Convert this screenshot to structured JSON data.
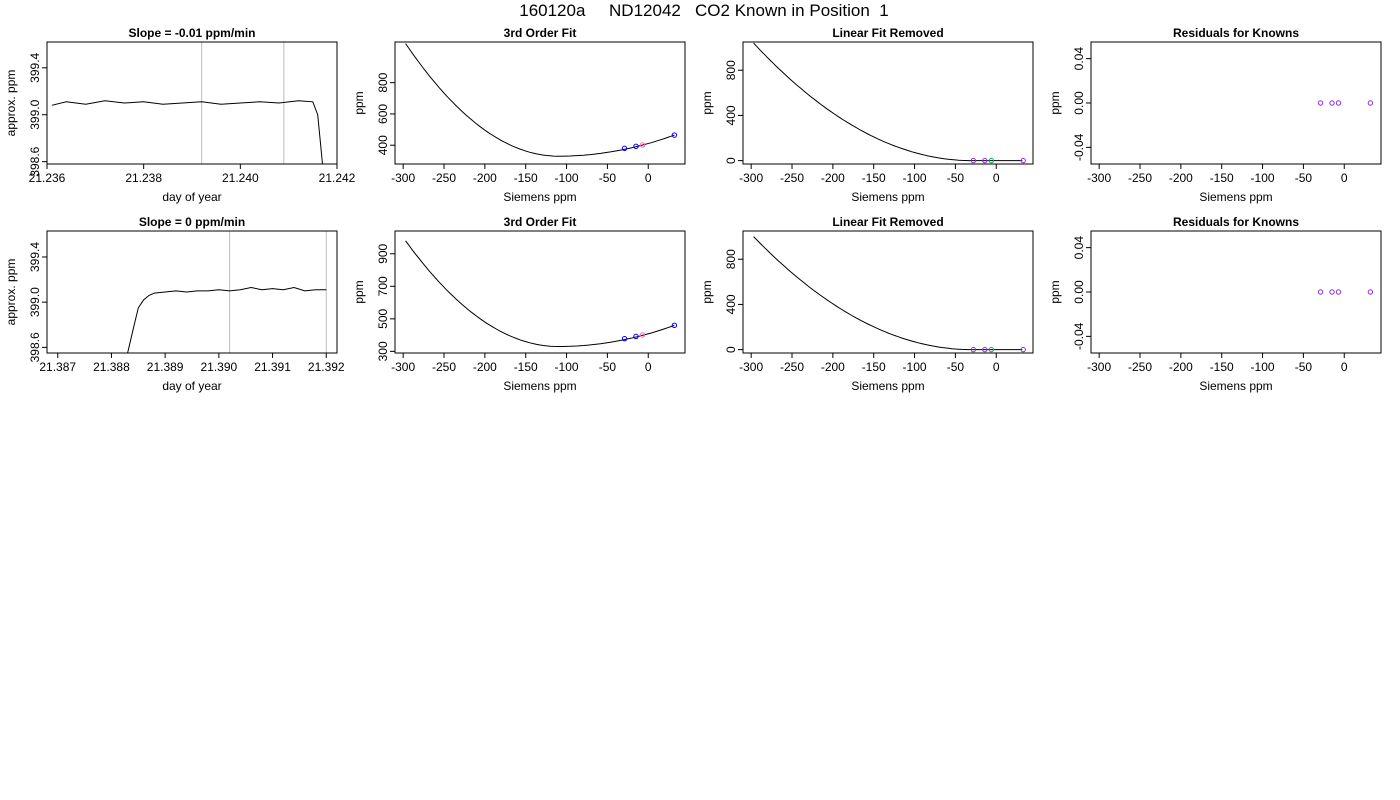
{
  "title": "160120a     ND12042   CO2 Known in Position  1",
  "colors": {
    "line": "#000000",
    "vline": "#bdbdbd",
    "point_blue": "#0000ff",
    "point_purple": "#8a2be2",
    "point_green": "#00b050",
    "point_pink": "#ff69b4"
  },
  "chart_data": [
    {
      "type": "line",
      "title": "Slope =  -0.01  ppm/min",
      "xlabel": "day of year",
      "ylabel": "approx. ppm",
      "xlim": [
        21.236,
        21.242
      ],
      "ylim": [
        398.58,
        399.62
      ],
      "xticks": [
        "21.236",
        "21.238",
        "21.240",
        "21.242"
      ],
      "yticks": [
        "398.6",
        "399.0",
        "399.4"
      ],
      "vlines": [
        21.2392,
        21.2409
      ],
      "series": [
        {
          "x": [
            21.2361,
            21.2364,
            21.2368,
            21.2372,
            21.2376,
            21.238,
            21.2384,
            21.2388,
            21.2392,
            21.2396,
            21.24,
            21.2404,
            21.2408,
            21.2412,
            21.2415,
            21.2416,
            21.2417
          ],
          "y": [
            399.08,
            399.11,
            399.09,
            399.12,
            399.1,
            399.11,
            399.09,
            399.1,
            399.11,
            399.09,
            399.1,
            399.11,
            399.1,
            399.12,
            399.11,
            399.0,
            398.58
          ]
        }
      ]
    },
    {
      "type": "line",
      "title": "3rd Order Fit",
      "xlabel": "Siemens ppm",
      "ylabel": "ppm",
      "xlim": [
        -310,
        45
      ],
      "ylim": [
        280,
        1060
      ],
      "xticks": [
        "-300",
        "-250",
        "-200",
        "-150",
        "-100",
        "-50",
        "0"
      ],
      "yticks": [
        "400",
        "600",
        "800"
      ],
      "curve": {
        "x0": -297,
        "x1": 32,
        "y_x0": 1050,
        "x_min": -110,
        "y_min": 330,
        "y_x1": 465
      },
      "points": [
        {
          "x": -29,
          "y": 380
        },
        {
          "x": -15,
          "y": 393
        },
        {
          "x": -7,
          "y": 402
        },
        {
          "x": 32,
          "y": 465
        }
      ]
    },
    {
      "type": "line",
      "title": "Linear Fit Removed",
      "xlabel": "Siemens ppm",
      "ylabel": "ppm",
      "xlim": [
        -310,
        45
      ],
      "ylim": [
        -30,
        1050
      ],
      "xticks": [
        "-300",
        "-250",
        "-200",
        "-150",
        "-100",
        "-50",
        "0"
      ],
      "yticks": [
        "0",
        "400",
        "800"
      ],
      "curve": {
        "x0": -297,
        "x1": 32,
        "y_x0": 1040,
        "x_min": -30,
        "y_min": 0,
        "y_x1": 0
      },
      "points": [
        {
          "x": -28,
          "y": 0
        },
        {
          "x": -14,
          "y": 0
        },
        {
          "x": -6,
          "y": 0
        },
        {
          "x": 33,
          "y": 0
        }
      ]
    },
    {
      "type": "scatter",
      "title": "Residuals for Knowns",
      "xlabel": "Siemens ppm",
      "ylabel": "ppm",
      "xlim": [
        -310,
        45
      ],
      "ylim": [
        -0.055,
        0.055
      ],
      "xticks": [
        "-300",
        "-250",
        "-200",
        "-150",
        "-100",
        "-50",
        "0"
      ],
      "yticks": [
        "-0.04",
        "0.00",
        "0.04"
      ],
      "points": [
        {
          "x": -29,
          "y": 0
        },
        {
          "x": -15,
          "y": 0
        },
        {
          "x": -7,
          "y": 0
        },
        {
          "x": 32,
          "y": 0
        }
      ]
    },
    {
      "type": "line",
      "title": "Slope =  0  ppm/min",
      "xlabel": "day of year",
      "ylabel": "approx. ppm",
      "xlim": [
        21.3868,
        21.3922
      ],
      "ylim": [
        398.55,
        399.63
      ],
      "xticks": [
        "21.387",
        "21.388",
        "21.389",
        "21.390",
        "21.391",
        "21.392"
      ],
      "yticks": [
        "398.6",
        "399.0",
        "399.4"
      ],
      "vlines": [
        21.3902,
        21.392
      ],
      "series": [
        {
          "x": [
            21.3883,
            21.3884,
            21.3885,
            21.3886,
            21.3887,
            21.3888,
            21.389,
            21.3892,
            21.3894,
            21.3896,
            21.3898,
            21.39,
            21.3902,
            21.3904,
            21.3906,
            21.3908,
            21.391,
            21.3912,
            21.3914,
            21.3916,
            21.3918,
            21.392
          ],
          "y": [
            398.55,
            398.75,
            398.95,
            399.02,
            399.06,
            399.08,
            399.09,
            399.1,
            399.09,
            399.1,
            399.1,
            399.11,
            399.1,
            399.11,
            399.13,
            399.11,
            399.12,
            399.11,
            399.13,
            399.1,
            399.11,
            399.11
          ]
        }
      ]
    },
    {
      "type": "line",
      "title": "3rd Order Fit",
      "xlabel": "Siemens ppm",
      "ylabel": "ppm",
      "xlim": [
        -310,
        45
      ],
      "ylim": [
        290,
        1040
      ],
      "xticks": [
        "-300",
        "-250",
        "-200",
        "-150",
        "-100",
        "-50",
        "0"
      ],
      "yticks": [
        "300",
        "500",
        "700",
        "900"
      ],
      "curve": {
        "x0": -297,
        "x1": 32,
        "y_x0": 980,
        "x_min": -110,
        "y_min": 330,
        "y_x1": 460
      },
      "points": [
        {
          "x": -29,
          "y": 378
        },
        {
          "x": -15,
          "y": 392
        },
        {
          "x": -7,
          "y": 401
        },
        {
          "x": 32,
          "y": 460
        }
      ]
    },
    {
      "type": "line",
      "title": "Linear Fit Removed",
      "xlabel": "Siemens ppm",
      "ylabel": "ppm",
      "xlim": [
        -310,
        45
      ],
      "ylim": [
        -30,
        1050
      ],
      "xticks": [
        "-300",
        "-250",
        "-200",
        "-150",
        "-100",
        "-50",
        "0"
      ],
      "yticks": [
        "0",
        "400",
        "800"
      ],
      "curve": {
        "x0": -297,
        "x1": 32,
        "y_x0": 1000,
        "x_min": -30,
        "y_min": 0,
        "y_x1": 0
      },
      "points": [
        {
          "x": -28,
          "y": 0
        },
        {
          "x": -14,
          "y": 0
        },
        {
          "x": -6,
          "y": 0
        },
        {
          "x": 33,
          "y": 0
        }
      ]
    },
    {
      "type": "scatter",
      "title": "Residuals for Knowns",
      "xlabel": "Siemens ppm",
      "ylabel": "ppm",
      "xlim": [
        -310,
        45
      ],
      "ylim": [
        -0.055,
        0.055
      ],
      "xticks": [
        "-300",
        "-250",
        "-200",
        "-150",
        "-100",
        "-50",
        "0"
      ],
      "yticks": [
        "-0.04",
        "0.00",
        "0.04"
      ],
      "points": [
        {
          "x": -29,
          "y": 0
        },
        {
          "x": -15,
          "y": 0
        },
        {
          "x": -7,
          "y": 0
        },
        {
          "x": 32,
          "y": 0
        }
      ]
    }
  ]
}
